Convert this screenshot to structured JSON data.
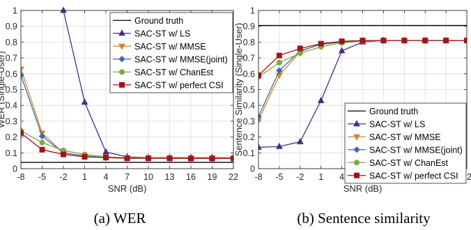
{
  "chart_data": [
    {
      "type": "line",
      "caption": "(a) WER",
      "xlabel": "SNR (dB)",
      "ylabel": "WER (Single-User)",
      "x": [
        -8,
        -5,
        -2,
        1,
        4,
        7,
        10,
        13,
        16,
        19,
        22
      ],
      "x_tick_labels": [
        "-8",
        "-5",
        "-2",
        "1",
        "4",
        "7",
        "10",
        "13",
        "16",
        "19",
        "22"
      ],
      "xlim": [
        -8,
        22
      ],
      "ylim": [
        0,
        1
      ],
      "y_ticks": [
        0,
        0.1,
        0.2,
        0.3,
        0.4,
        0.5,
        0.6,
        0.7,
        0.8,
        0.9,
        1
      ],
      "y_tick_labels": [
        "0",
        "0.1",
        "0.2",
        "0.3",
        "0.4",
        "0.5",
        "0.6",
        "0.7",
        "0.8",
        "0.9",
        "1"
      ],
      "grid": true,
      "legend_position": "top-right",
      "series": [
        {
          "name": "Ground truth",
          "color": "#000000",
          "marker": "none",
          "values": [
            0.04,
            0.04,
            0.04,
            0.04,
            0.04,
            0.04,
            0.04,
            0.04,
            0.04,
            0.04,
            0.04
          ]
        },
        {
          "name": "SAC-ST w/ LS",
          "color": "#4B2C83",
          "marker": "triangle-up",
          "values": [
            null,
            null,
            1.0,
            0.42,
            0.105,
            0.075,
            0.07,
            0.07,
            0.07,
            0.07,
            0.07
          ]
        },
        {
          "name": "SAC-ST w/ MMSE",
          "color": "#D9822B",
          "marker": "triangle-down",
          "values": [
            0.63,
            0.225,
            0.1,
            0.08,
            0.07,
            0.07,
            0.068,
            0.068,
            0.068,
            0.068,
            0.068
          ]
        },
        {
          "name": "SAC-ST w/ MMSE(joint)",
          "color": "#3C6DA8",
          "marker": "diamond",
          "values": [
            0.59,
            0.205,
            0.1,
            0.08,
            0.07,
            0.068,
            0.068,
            0.066,
            0.066,
            0.066,
            0.066
          ]
        },
        {
          "name": "SAC-ST w/ ChanEst",
          "color": "#7FA843",
          "marker": "circle",
          "values": [
            0.24,
            0.165,
            0.115,
            0.09,
            0.075,
            0.07,
            0.068,
            0.066,
            0.066,
            0.066,
            0.066
          ]
        },
        {
          "name": "SAC-ST w/ perfect CSI",
          "color": "#A31515",
          "marker": "square",
          "values": [
            0.225,
            0.12,
            0.09,
            0.075,
            0.07,
            0.065,
            0.065,
            0.065,
            0.064,
            0.064,
            0.064
          ]
        }
      ]
    },
    {
      "type": "line",
      "caption": "(b) Sentence similarity",
      "xlabel": "SNR (dB)",
      "ylabel": "Sentence Similarity (Single-User)",
      "x": [
        -8,
        -5,
        -2,
        1,
        4,
        7,
        10,
        13,
        16,
        19,
        22
      ],
      "x_tick_labels": [
        "-8",
        "-5",
        "-2",
        "1",
        "4",
        "7",
        "10",
        "13",
        "16",
        "19",
        "22"
      ],
      "xlim": [
        -8,
        22
      ],
      "ylim": [
        0,
        1
      ],
      "y_ticks": [
        0,
        0.1,
        0.2,
        0.3,
        0.4,
        0.5,
        0.6,
        0.7,
        0.8,
        0.9,
        1
      ],
      "y_tick_labels": [
        "0",
        "0.1",
        "0.2",
        "0.3",
        "0.4",
        "0.5",
        "0.6",
        "0.7",
        "0.8",
        "0.9",
        "1"
      ],
      "grid": true,
      "legend_position": "bottom-right",
      "series": [
        {
          "name": "Ground truth",
          "color": "#000000",
          "marker": "none",
          "values": [
            0.905,
            0.905,
            0.905,
            0.905,
            0.905,
            0.905,
            0.905,
            0.905,
            0.905,
            0.905,
            0.905
          ]
        },
        {
          "name": "SAC-ST w/ LS",
          "color": "#4B2C83",
          "marker": "triangle-up",
          "values": [
            0.135,
            0.14,
            0.17,
            0.43,
            0.745,
            0.8,
            0.81,
            0.81,
            0.81,
            0.81,
            0.81
          ]
        },
        {
          "name": "SAC-ST w/ MMSE",
          "color": "#D9822B",
          "marker": "triangle-down",
          "values": [
            0.305,
            0.59,
            0.74,
            0.79,
            0.8,
            0.81,
            0.81,
            0.81,
            0.81,
            0.81,
            0.81
          ]
        },
        {
          "name": "SAC-ST w/ MMSE(joint)",
          "color": "#3C6DA8",
          "marker": "diamond",
          "values": [
            0.33,
            0.62,
            0.745,
            0.785,
            0.8,
            0.81,
            0.81,
            0.81,
            0.81,
            0.81,
            0.81
          ]
        },
        {
          "name": "SAC-ST w/ ChanEst",
          "color": "#7FA843",
          "marker": "circle",
          "values": [
            0.58,
            0.67,
            0.73,
            0.77,
            0.795,
            0.805,
            0.81,
            0.81,
            0.81,
            0.81,
            0.81
          ]
        },
        {
          "name": "SAC-ST w/ perfect CSI",
          "color": "#A31515",
          "marker": "square",
          "values": [
            0.59,
            0.715,
            0.76,
            0.79,
            0.805,
            0.81,
            0.81,
            0.81,
            0.81,
            0.81,
            0.81
          ]
        }
      ]
    }
  ]
}
